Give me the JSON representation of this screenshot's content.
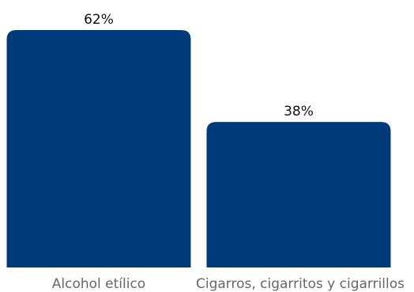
{
  "chart_data": {
    "type": "bar",
    "categories": [
      "Alcohol etílico",
      "Cigarros, cigarritos y cigarrillos"
    ],
    "values": [
      62,
      38
    ],
    "value_labels": [
      "62%",
      "38%"
    ],
    "ylim": [
      0,
      62
    ],
    "grid": false,
    "legend": "none",
    "bar_color": "#003a7a"
  }
}
